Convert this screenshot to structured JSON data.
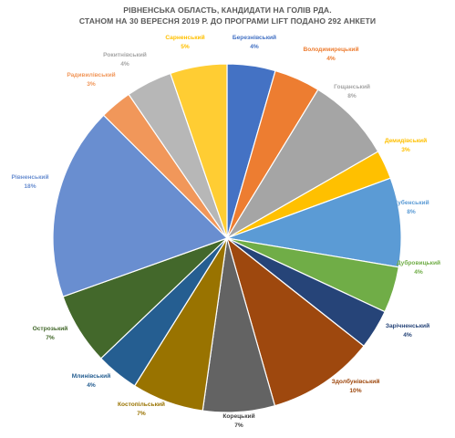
{
  "chart_data": {
    "type": "pie",
    "title": "РІВНЕНСЬКА ОБЛАСТЬ, КАНДИДАТИ НА ГОЛІВ РДА.",
    "subtitle": "СТАНОМ НА 30 ВЕРЕСНЯ 2019 Р. ДО ПРОГРАМИ LIFT ПОДАНО 292 АНКЕТИ",
    "slices": [
      {
        "label": "Березнівський",
        "pct_label": "4%",
        "value": 4.5,
        "color": "#4472C4"
      },
      {
        "label": "Володимирецький",
        "pct_label": "4%",
        "value": 4.3,
        "color": "#ED7D31"
      },
      {
        "label": "Гощанський",
        "pct_label": "8%",
        "value": 8.0,
        "color": "#A5A5A5"
      },
      {
        "label": "Демидівський",
        "pct_label": "3%",
        "value": 2.7,
        "color": "#FFC000"
      },
      {
        "label": "Дубенський",
        "pct_label": "8%",
        "value": 8.3,
        "color": "#5B9BD5"
      },
      {
        "label": "Дубровицький",
        "pct_label": "4%",
        "value": 4.3,
        "color": "#70AD47"
      },
      {
        "label": "Зарічненський",
        "pct_label": "4%",
        "value": 3.7,
        "color": "#264478"
      },
      {
        "label": "Здолбунівський",
        "pct_label": "10%",
        "value": 10.0,
        "color": "#9E480E"
      },
      {
        "label": "Корецький",
        "pct_label": "7%",
        "value": 6.7,
        "color": "#636363"
      },
      {
        "label": "Костопільський",
        "pct_label": "7%",
        "value": 6.7,
        "color": "#997300"
      },
      {
        "label": "Млинівський",
        "pct_label": "4%",
        "value": 4.0,
        "color": "#255E91"
      },
      {
        "label": "Острозький",
        "pct_label": "7%",
        "value": 6.7,
        "color": "#43682B"
      },
      {
        "label": "Рівненський",
        "pct_label": "18%",
        "value": 18.0,
        "color": "#698ED0"
      },
      {
        "label": "Радивилівський",
        "pct_label": "3%",
        "value": 3.0,
        "color": "#F1975A"
      },
      {
        "label": "Рокитнівський",
        "pct_label": "4%",
        "value": 4.3,
        "color": "#B7B7B7"
      },
      {
        "label": "Сарненський",
        "pct_label": "5%",
        "value": 5.3,
        "color": "#FFCD33"
      }
    ],
    "label_colors": {
      "Березнівський": "#4472C4",
      "Володимирецький": "#ED7D31",
      "Гощанський": "#A5A5A5",
      "Демидівський": "#FFC000",
      "Дубенський": "#5B9BD5",
      "Дубровицький": "#70AD47",
      "Зарічненський": "#264478",
      "Здолбунівський": "#9E480E",
      "Корецький": "#404040",
      "Костопільський": "#997300",
      "Млинівський": "#255E91",
      "Острозький": "#43682B",
      "Рівненський": "#698ED0",
      "Радивилівський": "#F1975A",
      "Рокитнівський": "#A5A5A5",
      "Сарненський": "#FFC000"
    },
    "legend": "none",
    "start": "12 o'clock, clockwise"
  }
}
